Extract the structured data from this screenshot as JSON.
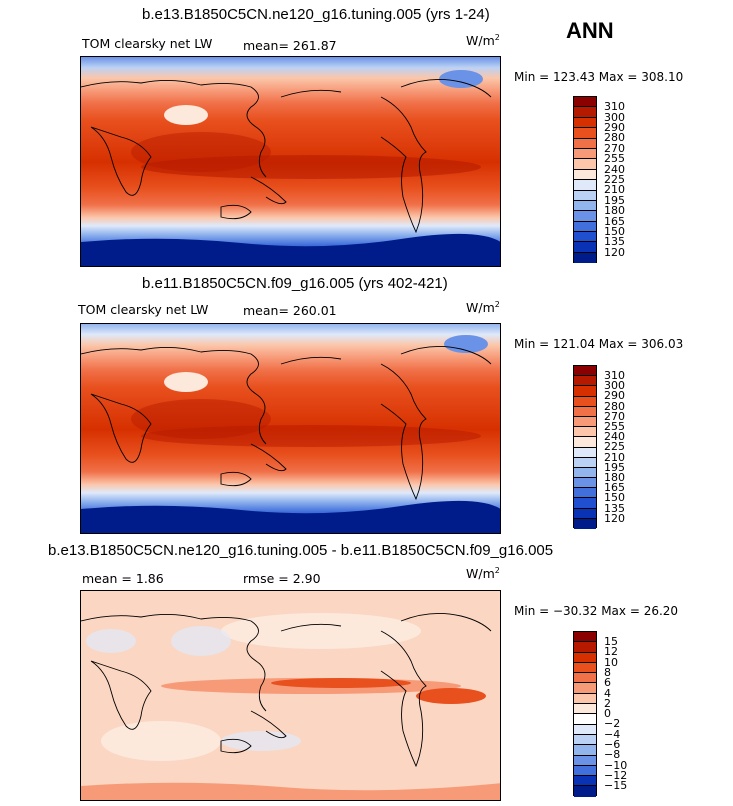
{
  "season_label": "ANN",
  "panels": [
    {
      "title": "b.e13.B1850C5CN.ne120_g16.tuning.005 (yrs 1-24)",
      "variable": "TOM clearsky net LW",
      "stat1": "mean= 261.87",
      "stat2": "",
      "units": "W/m",
      "units_exp": "2",
      "minmax": "Min = 123.43 Max = 308.10",
      "colorbar_labels": [
        "310",
        "300",
        "290",
        "280",
        "270",
        "255",
        "240",
        "225",
        "210",
        "195",
        "180",
        "165",
        "150",
        "135",
        "120"
      ]
    },
    {
      "title": "b.e11.B1850C5CN.f09_g16.005 (yrs 402-421)",
      "variable": "TOM clearsky net LW",
      "stat1": "mean= 260.01",
      "stat2": "",
      "units": "W/m",
      "units_exp": "2",
      "minmax": "Min = 121.04 Max = 306.03",
      "colorbar_labels": [
        "310",
        "300",
        "290",
        "280",
        "270",
        "255",
        "240",
        "225",
        "210",
        "195",
        "180",
        "165",
        "150",
        "135",
        "120"
      ]
    },
    {
      "title": "b.e13.B1850C5CN.ne120_g16.tuning.005 - b.e11.B1850C5CN.f09_g16.005",
      "variable": "mean =    1.86",
      "stat1": "rmse =    2.90",
      "stat2": "",
      "units": "W/m",
      "units_exp": "2",
      "minmax": "Min = −30.32 Max =  26.20",
      "colorbar_labels": [
        "15",
        "12",
        "10",
        "8",
        "6",
        "4",
        "2",
        "0",
        "−2",
        "−4",
        "−6",
        "−8",
        "−10",
        "−12",
        "−15"
      ]
    }
  ],
  "colors": {
    "abs_scale": [
      "#8b0000",
      "#b51a00",
      "#d73000",
      "#e8501e",
      "#f07048",
      "#f79a78",
      "#fbc6aa",
      "#fde9dc",
      "#dfe9fa",
      "#bcd2f5",
      "#93b5ee",
      "#6a92e6",
      "#4170dc",
      "#2050d0",
      "#0a32b4",
      "#001c8a"
    ],
    "diff_scale": [
      "#8b0000",
      "#b51a00",
      "#d73000",
      "#e8501e",
      "#f07048",
      "#f79a78",
      "#fbc6aa",
      "#fde9dc",
      "#ffffff",
      "#dfe9fa",
      "#bcd2f5",
      "#93b5ee",
      "#6a92e6",
      "#4170dc",
      "#0a32b4",
      "#001c8a"
    ]
  }
}
